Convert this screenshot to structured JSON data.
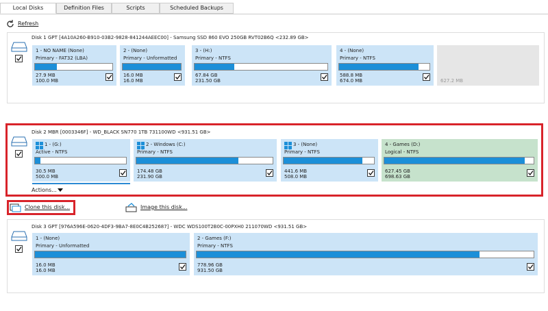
{
  "tabs": [
    "Local Disks",
    "Definition Files",
    "Scripts",
    "Scheduled Backups"
  ],
  "refresh": "Refresh",
  "disks": [
    {
      "header": "Disk 1 GPT [4A10A260-B910-03B2-9828-841244AEEC00] - Samsung SSD 860 EVO 250GB RVT02B6Q  <232.89 GB>",
      "partitions": [
        {
          "label": "1 - NO NAME (None)",
          "type": "Primary - FAT32 (LBA)",
          "used": "27.9 MB",
          "total": "100.0 MB"
        },
        {
          "label": "2 - (None)",
          "type": "Primary - Unformatted",
          "used": "16.0 MB",
          "total": "16.0 MB"
        },
        {
          "label": "3 - (H:)",
          "type": "Primary - NTFS",
          "used": "67.84 GB",
          "total": "231.50 GB"
        },
        {
          "label": "4 - (None)",
          "type": "Primary - NTFS",
          "used": "588.8 MB",
          "total": "674.0 MB"
        }
      ],
      "unallocated": "627.2 MB"
    },
    {
      "header": "Disk 2 MBR [0003346F] - WD_BLACK SN770 1TB 731100WD  <931.51 GB>",
      "partitions": [
        {
          "label": "1 - (G:)",
          "type": "Active - NTFS",
          "used": "30.5 MB",
          "total": "500.0 MB"
        },
        {
          "label": "2 - Windows (C:)",
          "type": "Primary - NTFS",
          "used": "174.48 GB",
          "total": "231.90 GB"
        },
        {
          "label": "3 - (None)",
          "type": "Primary - NTFS",
          "used": "441.6 MB",
          "total": "508.0 MB"
        },
        {
          "label": "4 - Games (D:)",
          "type": "Logical - NTFS",
          "used": "627.45 GB",
          "total": "698.63 GB"
        }
      ],
      "actions": "Actions..."
    },
    {
      "header": "Disk 3 GPT [976A596E-0620-4DF3-9BA7-8E0C4B252687] - WDC WDS100T2B0C-00PXH0 211070WD  <931.51 GB>",
      "partitions": [
        {
          "label": "1 - (None)",
          "type": "Primary - Unformatted",
          "used": "16.0 MB",
          "total": "16.0 MB"
        },
        {
          "label": "2 - Games (F:)",
          "type": "Primary - NTFS",
          "used": "778.96 GB",
          "total": "931.50 GB"
        }
      ]
    }
  ],
  "clone": "Clone this disk...",
  "image": "Image this disk..."
}
